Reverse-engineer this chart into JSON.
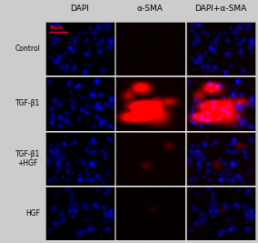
{
  "col_labels": [
    "DAPI",
    "α-SMA",
    "DAPI+α-SMA"
  ],
  "row_labels": [
    "Control",
    "TGF-β1",
    "TGF-β1\n+HGF",
    "HGF"
  ],
  "scale_bar_text": "50μm",
  "background_color": "#111111",
  "col_label_color": "#000000",
  "row_label_color": "#000000",
  "col_label_fontsize": 6.5,
  "row_label_fontsize": 5.5,
  "scale_bar_color": "#ff0000",
  "fig_bg": "#cccccc",
  "nrows": 4,
  "ncols": 3
}
